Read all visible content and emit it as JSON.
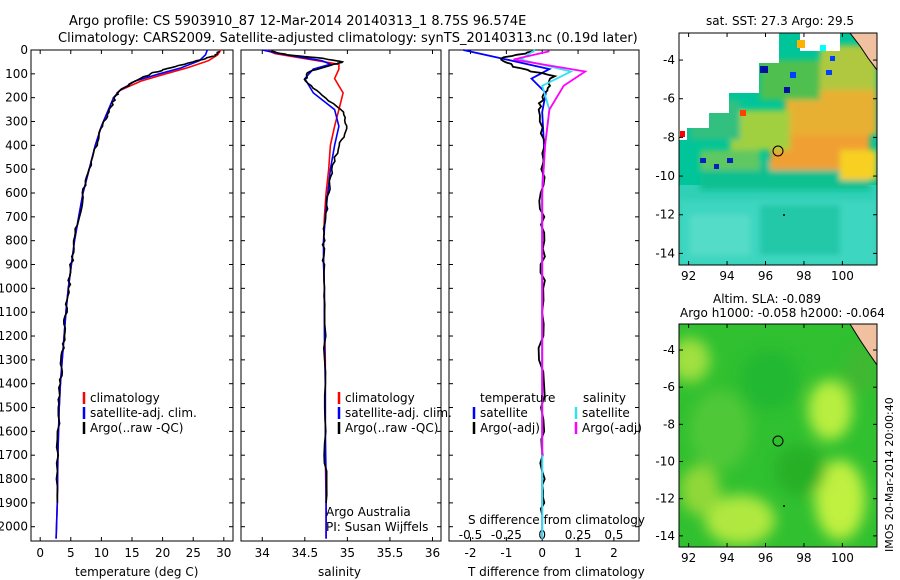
{
  "title_line1": "Argo profile: CS 5903910_87 12-Mar-2014 20140313_1 8.75S 96.574E",
  "title_line2": "Climatology: CARS2009. Satellite-adjusted climatology: synTS_20140313.nc (0.19d later)",
  "side_stamp": "IMOS 20-Mar-2014 20:00:40",
  "colors": {
    "climatology": "#ff0000",
    "satellite": "#0000ff",
    "argo": "#000000",
    "temp_sat": "#0000ff",
    "temp_argo": "#000000",
    "sal_sat": "#33e0f0",
    "sal_argo": "#ff00ff"
  },
  "chart_data": [
    {
      "type": "line",
      "name": "temperature profile",
      "xlabel": "temperature (deg C)",
      "xlim": [
        -1.5,
        31.5
      ],
      "ylim": [
        2060,
        0
      ],
      "xticks": [
        "0",
        "5",
        "10",
        "15",
        "20",
        "25",
        "30"
      ],
      "yticks": [
        "0",
        "100",
        "200",
        "300",
        "400",
        "500",
        "600",
        "700",
        "800",
        "900",
        "1000",
        "1100",
        "1200",
        "1300",
        "1400",
        "1500",
        "1600",
        "1700",
        "1800",
        "1900",
        "2000"
      ],
      "legend": [
        "climatology",
        "satellite-adj. clim.",
        "Argo(..raw -QC)"
      ],
      "series": [
        {
          "name": "climatology",
          "x": [
            29.5,
            29.0,
            27.5,
            24.0,
            20.5,
            16.5,
            13.0,
            12.0,
            11.0,
            10.0,
            9.0,
            8.0,
            7.0,
            6.3,
            5.6,
            5.1,
            4.6,
            4.2,
            3.9,
            3.6,
            3.3,
            3.1,
            2.9,
            2.8,
            2.6
          ],
          "y": [
            0,
            20,
            45,
            75,
            100,
            130,
            170,
            200,
            260,
            320,
            400,
            500,
            600,
            700,
            800,
            900,
            1000,
            1100,
            1200,
            1300,
            1400,
            1500,
            1700,
            1900,
            2050
          ]
        },
        {
          "name": "satellite-adj. clim.",
          "x": [
            27.3,
            27.0,
            26.0,
            23.0,
            19.5,
            15.5,
            13.0,
            12.0,
            11.0,
            10.0,
            9.0,
            8.0,
            7.0,
            6.3,
            5.6,
            5.1,
            4.6,
            4.2,
            3.9,
            3.6,
            3.3,
            3.1,
            2.9,
            2.8,
            2.6
          ],
          "y": [
            0,
            20,
            45,
            75,
            100,
            130,
            170,
            200,
            260,
            320,
            400,
            500,
            600,
            700,
            800,
            900,
            1000,
            1100,
            1200,
            1300,
            1400,
            1500,
            1700,
            1900,
            2050
          ]
        },
        {
          "name": "Argo(..raw -QC)",
          "x": [
            29.3,
            28.8,
            26.5,
            22.0,
            18.5,
            15.5,
            13.0,
            12.2,
            11.2,
            10.2,
            9.1,
            8.0,
            7.0,
            6.3,
            5.6,
            5.1,
            4.6,
            4.2,
            3.9,
            3.6,
            3.3,
            3.1,
            2.9,
            2.8
          ],
          "y": [
            5,
            20,
            40,
            70,
            95,
            130,
            170,
            200,
            260,
            320,
            400,
            500,
            600,
            700,
            800,
            900,
            1000,
            1100,
            1200,
            1300,
            1400,
            1500,
            1700,
            1900
          ]
        }
      ]
    },
    {
      "type": "line",
      "name": "salinity profile",
      "xlabel": "salinity",
      "xlim": [
        33.75,
        36.1
      ],
      "ylim": [
        2060,
        0
      ],
      "xticks": [
        "34",
        "34.5",
        "35",
        "35.5",
        "36"
      ],
      "legend": [
        "climatology",
        "satellite-adj. clim.",
        "Argo(..raw -QC)"
      ],
      "annotation_line1": "Argo Australia",
      "annotation_line2": "PI: Susan Wijffels",
      "series": [
        {
          "name": "climatology",
          "x": [
            34.05,
            34.15,
            34.4,
            34.65,
            34.9,
            34.9,
            34.85,
            34.95,
            34.9,
            34.85,
            34.8,
            34.78,
            34.75,
            34.73,
            34.72,
            34.72,
            34.73,
            34.73,
            34.74,
            34.74,
            34.74,
            34.75,
            34.75
          ],
          "y": [
            0,
            15,
            30,
            45,
            60,
            80,
            120,
            180,
            250,
            320,
            400,
            500,
            600,
            700,
            800,
            900,
            1000,
            1100,
            1300,
            1500,
            1700,
            1900,
            2050
          ]
        },
        {
          "name": "satellite-adj. clim.",
          "x": [
            34.0,
            34.2,
            34.45,
            34.7,
            34.8,
            34.6,
            34.5,
            34.6,
            34.85,
            34.9,
            34.85,
            34.8,
            34.77,
            34.74,
            34.72,
            34.72,
            34.73,
            34.73,
            34.74,
            34.74,
            34.75,
            34.75
          ],
          "y": [
            0,
            15,
            30,
            45,
            60,
            80,
            120,
            180,
            250,
            320,
            400,
            500,
            600,
            700,
            800,
            900,
            1000,
            1200,
            1400,
            1600,
            1800,
            2050
          ]
        },
        {
          "name": "Argo(..raw -QC)",
          "x": [
            34.1,
            34.3,
            34.7,
            34.95,
            34.8,
            34.55,
            34.5,
            34.7,
            34.95,
            35.0,
            34.9,
            34.82,
            34.78,
            34.74,
            34.72,
            34.72,
            34.73,
            34.74,
            34.74,
            34.75
          ],
          "y": [
            5,
            20,
            35,
            50,
            65,
            90,
            130,
            190,
            260,
            330,
            400,
            500,
            600,
            700,
            800,
            900,
            1100,
            1400,
            1700,
            1900
          ]
        }
      ]
    },
    {
      "type": "line",
      "name": "difference profile",
      "xlabel": "T difference from climatology",
      "xlabel_top": "S difference from climatology",
      "xlim": [
        -2.6,
        2.7
      ],
      "ylim": [
        2060,
        0
      ],
      "xticks": [
        "-2",
        "-1",
        "0",
        "1",
        "2"
      ],
      "xticks_top": [
        "-0.5",
        "-0.25",
        "0",
        "0.25",
        "0.5"
      ],
      "legend_temperature_title": "temperature",
      "legend_salinity_title": "salinity",
      "legend_temperature": [
        "satellite",
        "Argo(-adj)"
      ],
      "legend_salinity": [
        "satellite",
        "Argo(-adj)"
      ],
      "series": [
        {
          "name": "temperature satellite",
          "x": [
            -2.2,
            -1.0,
            0.2,
            -0.3,
            0.1,
            0.0,
            0.05,
            0.0,
            0.0,
            0.0,
            0.0,
            0.0,
            0.0,
            0.0
          ],
          "y": [
            0,
            40,
            80,
            120,
            180,
            260,
            400,
            600,
            800,
            1000,
            1300,
            1600,
            1800,
            2050
          ]
        },
        {
          "name": "temperature Argo(-adj)",
          "x": [
            -0.2,
            -1.2,
            -0.8,
            0.3,
            0.1,
            -0.1,
            0.1,
            -0.05,
            0.05,
            0.0,
            -0.05,
            0.05,
            0.0,
            0.0
          ],
          "y": [
            5,
            35,
            70,
            110,
            170,
            250,
            400,
            600,
            800,
            1000,
            1300,
            1600,
            1800,
            1950
          ]
        },
        {
          "name": "salinity satellite",
          "x": [
            -0.05,
            -0.15,
            0.2,
            0.0,
            0.05,
            0.02,
            0.0,
            0.0,
            0.0,
            0.0,
            0.0
          ],
          "y": [
            0,
            40,
            90,
            150,
            250,
            400,
            600,
            900,
            1300,
            1700,
            2050
          ]
        },
        {
          "name": "salinity Argo(-adj)",
          "x": [
            0.05,
            -0.2,
            0.3,
            0.15,
            0.05,
            0.02,
            0.0,
            0.0,
            0.0,
            0.0
          ],
          "y": [
            5,
            40,
            90,
            150,
            250,
            400,
            600,
            900,
            1300,
            1700
          ]
        }
      ]
    },
    {
      "type": "heatmap",
      "name": "SST map",
      "title": "sat. SST: 27.3 Argo: 29.5",
      "xlim": [
        91.5,
        101.8
      ],
      "ylim": [
        -14.6,
        -2.6
      ],
      "xticks": [
        "92",
        "94",
        "96",
        "98",
        "100"
      ],
      "yticks": [
        "-4",
        "-6",
        "-8",
        "-10",
        "-12",
        "-14"
      ],
      "profile_location": [
        96.574,
        -8.75
      ]
    },
    {
      "type": "heatmap",
      "name": "SLA map",
      "title_line1": "Altim. SLA: -0.089",
      "title_line2": "Argo h1000: -0.058 h2000: -0.064",
      "xlim": [
        91.5,
        101.8
      ],
      "ylim": [
        -14.6,
        -2.6
      ],
      "xticks": [
        "92",
        "94",
        "96",
        "98",
        "100"
      ],
      "yticks": [
        "-4",
        "-6",
        "-8",
        "-10",
        "-12",
        "-14"
      ],
      "profile_location": [
        96.574,
        -8.75
      ]
    }
  ]
}
